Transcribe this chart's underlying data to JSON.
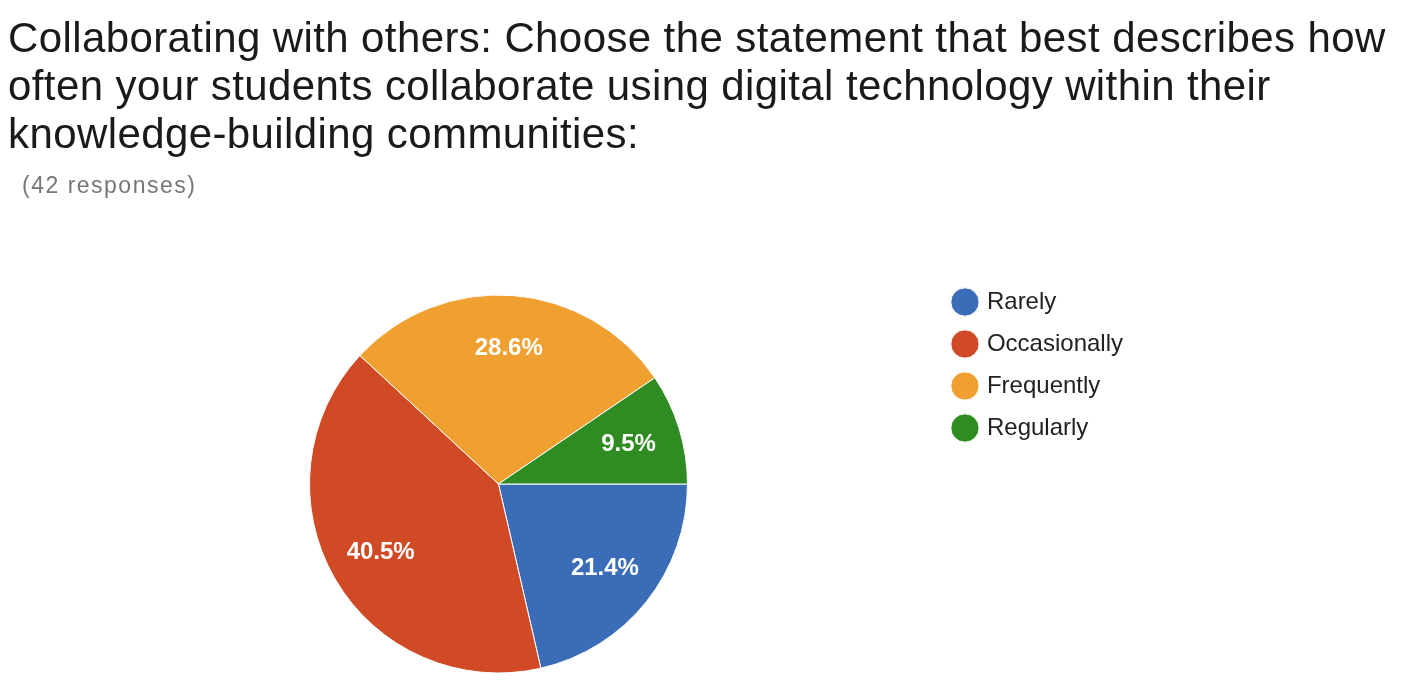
{
  "chart_data": {
    "type": "pie",
    "title": "Collaborating with others: Choose the statement that best describes how often your students collaborate using digital technology within their knowledge-building communities:",
    "subtitle": "(42 responses)",
    "categories": [
      "Rarely",
      "Occasionally",
      "Frequently",
      "Regularly"
    ],
    "values": [
      21.4,
      40.5,
      28.6,
      9.5
    ],
    "value_labels": [
      "21.4%",
      "40.5%",
      "28.6%",
      "9.5%"
    ],
    "colors": [
      "#3a6cb8",
      "#d04a25",
      "#f0a030",
      "#2f8c22"
    ],
    "legend": "top right"
  }
}
